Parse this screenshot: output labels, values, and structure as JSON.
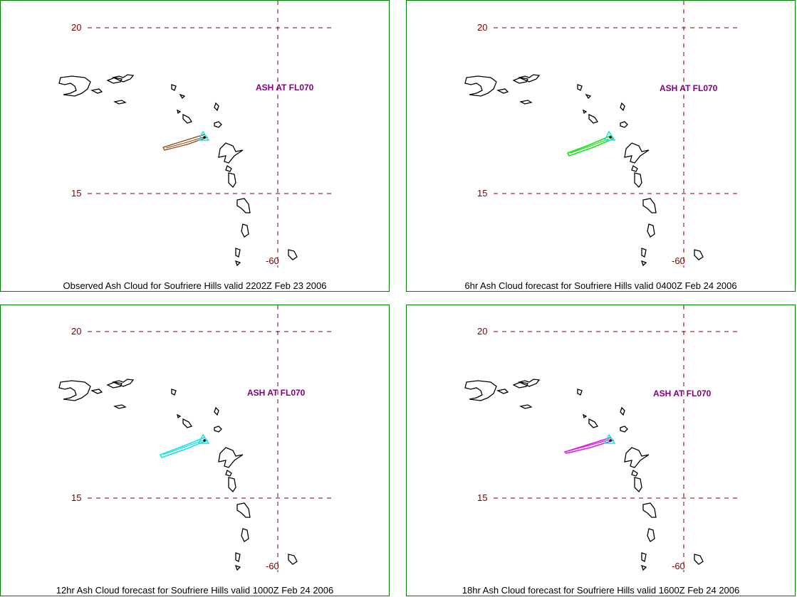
{
  "panels": [
    {
      "caption": "Observed Ash Cloud for Soufriere  Hills valid 2202Z Feb 23 2006",
      "ash_label": "ASH AT FL070",
      "lat_top": "20",
      "lat_bottom": "15",
      "lon": "-60",
      "plume_color": "#8b4513"
    },
    {
      "caption": "6hr Ash Cloud forecast for Soufriere  Hills valid 0400Z Feb 24 2006",
      "ash_label": "ASH AT FL070",
      "lat_top": "20",
      "lat_bottom": "15",
      "lon": "-60",
      "plume_color": "#22dd22"
    },
    {
      "caption": "12hr Ash Cloud forecast for Soufriere  Hills valid 1000Z Feb 24 2006",
      "ash_label": "ASH AT FL070",
      "lat_top": "20",
      "lat_bottom": "15",
      "lon": "-60",
      "plume_color": "#22e0e0"
    },
    {
      "caption": "18hr Ash Cloud forecast for Soufriere  Hills valid 1600Z Feb 24 2006",
      "ash_label": "ASH AT FL070",
      "lat_top": "20",
      "lat_bottom": "15",
      "lon": "-60",
      "plume_color": "#dd22dd"
    }
  ],
  "colors": {
    "panel_border": "#008000",
    "gridline": "#800000",
    "coastline": "#000000",
    "volcano_marker": "#22e0e0"
  }
}
